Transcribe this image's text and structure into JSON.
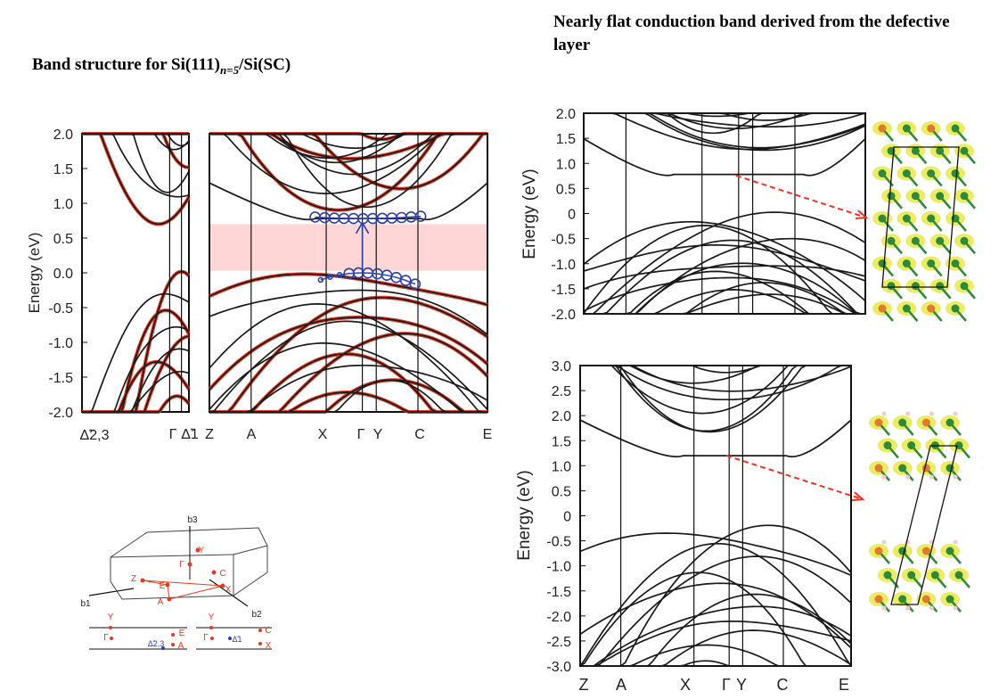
{
  "title_left": {
    "prefix": "Band structure for Si(111)",
    "subscript": "n=5",
    "suffix": "/Si(SC)"
  },
  "title_right": "Nearly flat conduction band derived from the defective layer",
  "colors": {
    "band": "#1a1a1a",
    "weight": "#e33b22",
    "gap_shade": "#ffd6d6",
    "marker": "#2b3fa8",
    "arrow": "#ee3322",
    "atom_green": "#2f8a35",
    "atom_orange": "#e07b2c",
    "density": "#e8e84a",
    "hydrogen": "#f3c9cf"
  },
  "chart_data": [
    {
      "type": "line",
      "name": "panel-A-left",
      "ylabel": "Energy (eV)",
      "ylim": [
        -2.0,
        2.0
      ],
      "yticks": [
        "2.0",
        "1.5",
        "1.0",
        "0.5",
        "0.0",
        "-0.5",
        "-1.0",
        "-1.5",
        "-2.0"
      ],
      "xticks": [
        "Δ̃2,3",
        "Γ",
        "Δ̃1"
      ],
      "grid": false
    },
    {
      "type": "line",
      "name": "panel-A-right",
      "ylim": [
        -2.0,
        2.0
      ],
      "xticks": [
        "Z",
        "A",
        "X",
        "Γ",
        "Y",
        "C",
        "E"
      ],
      "shaded_gap": [
        0.03,
        0.7
      ],
      "vbm_marker": 0.0,
      "cbm_marker": 0.78,
      "grid": false
    },
    {
      "type": "line",
      "name": "panel-B",
      "ylabel": "Energy (eV)",
      "ylim": [
        -2.0,
        2.0
      ],
      "yticks": [
        "2.0",
        "1.5",
        "1.0",
        "0.5",
        "0",
        "-0.5",
        "-1.0",
        "-1.5",
        "-2.0"
      ],
      "flat_band_energy": 0.78,
      "grid": false
    },
    {
      "type": "line",
      "name": "panel-C",
      "ylabel": "Energy (eV)",
      "ylim": [
        -3.0,
        3.0
      ],
      "yticks": [
        "3.0",
        "2.5",
        "2.0",
        "1.5",
        "1.0",
        "0.5",
        "0",
        "-0.5",
        "-1.0",
        "-1.5",
        "-2.0",
        "-2.5",
        "-3.0"
      ],
      "xticks": [
        "Z",
        "A",
        "X",
        "Γ",
        "Y",
        "C",
        "E"
      ],
      "flat_band_energy": 1.2,
      "grid": false
    }
  ],
  "bz": {
    "axis_b1": "b1",
    "axis_b2": "b2",
    "axis_b3": "b3",
    "points": [
      "Y",
      "Γ",
      "C",
      "Z",
      "E",
      "X",
      "A"
    ],
    "proj_left": [
      "Y",
      "Γ",
      "E",
      "Δ̃2,3",
      "A"
    ],
    "proj_right": [
      "Y",
      "Γ",
      "Δ̃1",
      "C",
      "X"
    ]
  }
}
